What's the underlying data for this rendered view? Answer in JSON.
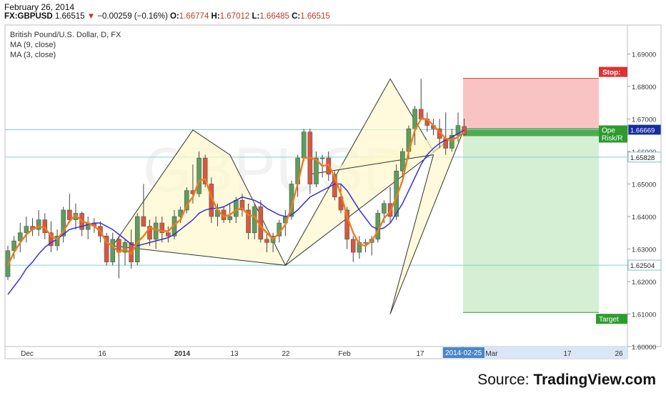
{
  "header": {
    "date": "February 26, 2014",
    "symbol": "FX:GBPUSD",
    "last": "1.66515",
    "change": "−0.00259 (−0.16%)",
    "open_label": "O:",
    "open": "1.66774",
    "high_label": "H:",
    "high": "1.67012",
    "low_label": "L:",
    "low": "1.66485",
    "close_label": "C:",
    "close": "1.66515"
  },
  "legend": {
    "title": "British Pound/U.S. Dollar, D, FX",
    "ma1": "MA (9, close)",
    "ma2": "MA (3, close)"
  },
  "source": {
    "prefix": "Source:",
    "brand": "TradingView.com"
  },
  "colors": {
    "up": "#5b9e5b",
    "down": "#d9573f",
    "ma9": "#3a2fd6",
    "ma3": "#f07b1c",
    "stop_zone": "#f9b9b9",
    "target_zone": "#cdeccd",
    "pattern_fill": "#fdf8cc",
    "hline": "#7fd0d0"
  },
  "chart_data": {
    "type": "candlestick",
    "ylim": [
      1.595,
      1.6985
    ],
    "yticks": [
      "1.60000",
      "1.61000",
      "1.62000",
      "1.63000",
      "1.64000",
      "1.65000",
      "1.66000",
      "1.67000",
      "1.68000",
      "1.69000"
    ],
    "xticks": [
      "Dec",
      "16",
      "2014",
      "13",
      "22",
      "Feb",
      "17",
      "Mar",
      "17",
      "26"
    ],
    "date_badge": "2014-02-25",
    "price_labels": [
      "1.66669",
      "1.65828",
      "1.62504"
    ],
    "hlines": [
      1.66669,
      1.65828,
      1.62504
    ],
    "position": {
      "stop_label": "Stop:",
      "open_label": "Ope",
      "risk_label": "Risk/R",
      "target_label": "Target",
      "entry": 1.6667,
      "stop": 1.6825,
      "target": 1.6105
    },
    "candles": [
      {
        "o": 1.6215,
        "h": 1.631,
        "l": 1.6205,
        "c": 1.6295
      },
      {
        "o": 1.6295,
        "h": 1.634,
        "l": 1.627,
        "c": 1.6325
      },
      {
        "o": 1.6325,
        "h": 1.638,
        "l": 1.629,
        "c": 1.635
      },
      {
        "o": 1.635,
        "h": 1.64,
        "l": 1.632,
        "c": 1.637
      },
      {
        "o": 1.637,
        "h": 1.6395,
        "l": 1.634,
        "c": 1.636
      },
      {
        "o": 1.636,
        "h": 1.642,
        "l": 1.634,
        "c": 1.639
      },
      {
        "o": 1.639,
        "h": 1.641,
        "l": 1.633,
        "c": 1.635
      },
      {
        "o": 1.635,
        "h": 1.6385,
        "l": 1.629,
        "c": 1.631
      },
      {
        "o": 1.631,
        "h": 1.636,
        "l": 1.6295,
        "c": 1.634
      },
      {
        "o": 1.634,
        "h": 1.643,
        "l": 1.632,
        "c": 1.642
      },
      {
        "o": 1.642,
        "h": 1.647,
        "l": 1.638,
        "c": 1.639
      },
      {
        "o": 1.639,
        "h": 1.644,
        "l": 1.636,
        "c": 1.641
      },
      {
        "o": 1.641,
        "h": 1.6415,
        "l": 1.634,
        "c": 1.636
      },
      {
        "o": 1.636,
        "h": 1.64,
        "l": 1.633,
        "c": 1.638
      },
      {
        "o": 1.638,
        "h": 1.6395,
        "l": 1.635,
        "c": 1.637
      },
      {
        "o": 1.637,
        "h": 1.6385,
        "l": 1.632,
        "c": 1.634
      },
      {
        "o": 1.634,
        "h": 1.635,
        "l": 1.625,
        "c": 1.626
      },
      {
        "o": 1.626,
        "h": 1.635,
        "l": 1.625,
        "c": 1.633
      },
      {
        "o": 1.633,
        "h": 1.634,
        "l": 1.621,
        "c": 1.629
      },
      {
        "o": 1.629,
        "h": 1.633,
        "l": 1.625,
        "c": 1.632
      },
      {
        "o": 1.632,
        "h": 1.636,
        "l": 1.624,
        "c": 1.626
      },
      {
        "o": 1.626,
        "h": 1.641,
        "l": 1.625,
        "c": 1.64
      },
      {
        "o": 1.64,
        "h": 1.65,
        "l": 1.637,
        "c": 1.637
      },
      {
        "o": 1.637,
        "h": 1.639,
        "l": 1.631,
        "c": 1.633
      },
      {
        "o": 1.633,
        "h": 1.64,
        "l": 1.63,
        "c": 1.638
      },
      {
        "o": 1.638,
        "h": 1.64,
        "l": 1.632,
        "c": 1.635
      },
      {
        "o": 1.635,
        "h": 1.637,
        "l": 1.632,
        "c": 1.634
      },
      {
        "o": 1.634,
        "h": 1.642,
        "l": 1.633,
        "c": 1.64
      },
      {
        "o": 1.64,
        "h": 1.643,
        "l": 1.638,
        "c": 1.642
      },
      {
        "o": 1.642,
        "h": 1.649,
        "l": 1.641,
        "c": 1.648
      },
      {
        "o": 1.648,
        "h": 1.656,
        "l": 1.644,
        "c": 1.647
      },
      {
        "o": 1.647,
        "h": 1.66,
        "l": 1.646,
        "c": 1.658
      },
      {
        "o": 1.658,
        "h": 1.659,
        "l": 1.649,
        "c": 1.65
      },
      {
        "o": 1.65,
        "h": 1.652,
        "l": 1.638,
        "c": 1.64
      },
      {
        "o": 1.64,
        "h": 1.644,
        "l": 1.637,
        "c": 1.642
      },
      {
        "o": 1.642,
        "h": 1.643,
        "l": 1.638,
        "c": 1.639
      },
      {
        "o": 1.639,
        "h": 1.644,
        "l": 1.638,
        "c": 1.64
      },
      {
        "o": 1.64,
        "h": 1.646,
        "l": 1.638,
        "c": 1.645
      },
      {
        "o": 1.645,
        "h": 1.647,
        "l": 1.64,
        "c": 1.642
      },
      {
        "o": 1.642,
        "h": 1.644,
        "l": 1.633,
        "c": 1.635
      },
      {
        "o": 1.635,
        "h": 1.644,
        "l": 1.633,
        "c": 1.643
      },
      {
        "o": 1.643,
        "h": 1.645,
        "l": 1.632,
        "c": 1.633
      },
      {
        "o": 1.633,
        "h": 1.635,
        "l": 1.629,
        "c": 1.632
      },
      {
        "o": 1.632,
        "h": 1.635,
        "l": 1.629,
        "c": 1.634
      },
      {
        "o": 1.634,
        "h": 1.639,
        "l": 1.632,
        "c": 1.638
      },
      {
        "o": 1.638,
        "h": 1.642,
        "l": 1.634,
        "c": 1.64
      },
      {
        "o": 1.64,
        "h": 1.651,
        "l": 1.639,
        "c": 1.65
      },
      {
        "o": 1.65,
        "h": 1.659,
        "l": 1.646,
        "c": 1.658
      },
      {
        "o": 1.658,
        "h": 1.667,
        "l": 1.657,
        "c": 1.666
      },
      {
        "o": 1.666,
        "h": 1.667,
        "l": 1.647,
        "c": 1.65
      },
      {
        "o": 1.65,
        "h": 1.66,
        "l": 1.649,
        "c": 1.658
      },
      {
        "o": 1.658,
        "h": 1.659,
        "l": 1.652,
        "c": 1.658
      },
      {
        "o": 1.658,
        "h": 1.66,
        "l": 1.651,
        "c": 1.653
      },
      {
        "o": 1.653,
        "h": 1.654,
        "l": 1.645,
        "c": 1.646
      },
      {
        "o": 1.646,
        "h": 1.65,
        "l": 1.641,
        "c": 1.642
      },
      {
        "o": 1.642,
        "h": 1.643,
        "l": 1.63,
        "c": 1.633
      },
      {
        "o": 1.633,
        "h": 1.634,
        "l": 1.626,
        "c": 1.629
      },
      {
        "o": 1.629,
        "h": 1.634,
        "l": 1.627,
        "c": 1.632
      },
      {
        "o": 1.632,
        "h": 1.633,
        "l": 1.629,
        "c": 1.632
      },
      {
        "o": 1.632,
        "h": 1.634,
        "l": 1.628,
        "c": 1.633
      },
      {
        "o": 1.633,
        "h": 1.642,
        "l": 1.632,
        "c": 1.641
      },
      {
        "o": 1.641,
        "h": 1.645,
        "l": 1.638,
        "c": 1.644
      },
      {
        "o": 1.644,
        "h": 1.649,
        "l": 1.638,
        "c": 1.64
      },
      {
        "o": 1.64,
        "h": 1.656,
        "l": 1.639,
        "c": 1.654
      },
      {
        "o": 1.654,
        "h": 1.661,
        "l": 1.652,
        "c": 1.66
      },
      {
        "o": 1.66,
        "h": 1.668,
        "l": 1.658,
        "c": 1.667
      },
      {
        "o": 1.667,
        "h": 1.674,
        "l": 1.662,
        "c": 1.673
      },
      {
        "o": 1.673,
        "h": 1.6823,
        "l": 1.67,
        "c": 1.67
      },
      {
        "o": 1.67,
        "h": 1.672,
        "l": 1.666,
        "c": 1.668
      },
      {
        "o": 1.668,
        "h": 1.67,
        "l": 1.665,
        "c": 1.667
      },
      {
        "o": 1.667,
        "h": 1.67,
        "l": 1.661,
        "c": 1.664
      },
      {
        "o": 1.664,
        "h": 1.672,
        "l": 1.659,
        "c": 1.661
      },
      {
        "o": 1.661,
        "h": 1.667,
        "l": 1.66,
        "c": 1.665
      },
      {
        "o": 1.665,
        "h": 1.672,
        "l": 1.663,
        "c": 1.668
      },
      {
        "o": 1.6677,
        "h": 1.6701,
        "l": 1.6649,
        "c": 1.6652
      }
    ],
    "ma9": [
      1.616,
      1.6185,
      1.621,
      1.624,
      1.626,
      1.6285,
      1.6305,
      1.632,
      1.633,
      1.6345,
      1.636,
      1.6365,
      1.637,
      1.6375,
      1.638,
      1.638,
      1.637,
      1.636,
      1.6345,
      1.633,
      1.6315,
      1.631,
      1.6315,
      1.632,
      1.6325,
      1.633,
      1.6335,
      1.6345,
      1.636,
      1.6375,
      1.639,
      1.641,
      1.642,
      1.6425,
      1.6425,
      1.643,
      1.644,
      1.645,
      1.646,
      1.6455,
      1.645,
      1.644,
      1.6425,
      1.6415,
      1.6405,
      1.64,
      1.6405,
      1.642,
      1.644,
      1.646,
      1.647,
      1.648,
      1.649,
      1.65,
      1.65,
      1.648,
      1.645,
      1.642,
      1.6395,
      1.637,
      1.636,
      1.6365,
      1.638,
      1.641,
      1.644,
      1.648,
      1.652,
      1.656,
      1.659,
      1.661,
      1.6625,
      1.6635,
      1.6645,
      1.6655,
      1.6665
    ],
    "ma3": [
      1.625,
      1.629,
      1.632,
      1.6345,
      1.636,
      1.637,
      1.6365,
      1.634,
      1.633,
      1.6355,
      1.6385,
      1.6405,
      1.6385,
      1.638,
      1.637,
      1.6355,
      1.632,
      1.631,
      1.629,
      1.63,
      1.6285,
      1.632,
      1.634,
      1.6365,
      1.636,
      1.6355,
      1.6355,
      1.6375,
      1.639,
      1.6435,
      1.646,
      1.651,
      1.6515,
      1.646,
      1.642,
      1.64,
      1.6405,
      1.642,
      1.6425,
      1.6405,
      1.64,
      1.637,
      1.635,
      1.633,
      1.635,
      1.6375,
      1.643,
      1.65,
      1.658,
      1.658,
      1.6575,
      1.6555,
      1.656,
      1.652,
      1.647,
      1.64,
      1.635,
      1.6315,
      1.631,
      1.6325,
      1.6355,
      1.6395,
      1.6415,
      1.646,
      1.651,
      1.66,
      1.6665,
      1.67,
      1.67,
      1.668,
      1.666,
      1.664,
      1.6635,
      1.6645,
      1.666
    ],
    "patterns": [
      {
        "points": [
          [
            17,
            1.631
          ],
          [
            30,
            1.6666
          ],
          [
            36,
            1.659
          ],
          [
            40,
            1.644
          ],
          [
            45,
            1.625
          ]
        ],
        "closed": true
      },
      {
        "points": [
          [
            45,
            1.625
          ],
          [
            62,
            1.6823
          ],
          [
            69,
            1.66
          ],
          [
            74,
            1.667
          ],
          [
            45,
            1.625
          ]
        ],
        "closed": false
      },
      {
        "points": [
          [
            49,
            1.653
          ],
          [
            69,
            1.659
          ],
          [
            62,
            1.61
          ],
          [
            74,
            1.667
          ]
        ],
        "closed": false
      }
    ]
  }
}
